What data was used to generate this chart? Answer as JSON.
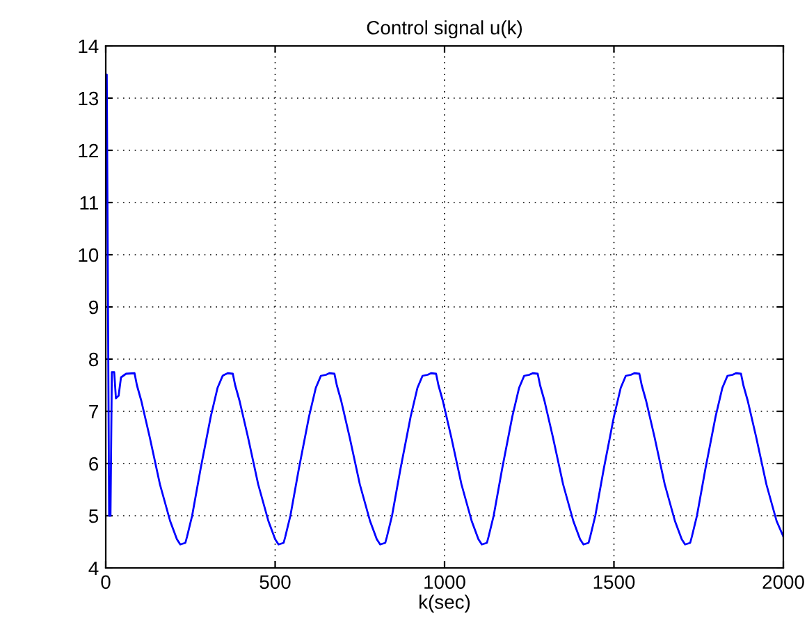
{
  "chart_data": {
    "type": "line",
    "title": "Control signal u(k)",
    "xlabel": "k(sec)",
    "xlim": [
      0,
      2000
    ],
    "ylim": [
      4,
      14
    ],
    "xticks": [
      0,
      500,
      1000,
      1500,
      2000
    ],
    "yticks": [
      4,
      5,
      6,
      7,
      8,
      9,
      10,
      11,
      12,
      13,
      14
    ],
    "grid": true,
    "line_style": "solid",
    "marker": "none",
    "series": [
      {
        "color": "#0000ff",
        "x": [
          0,
          3,
          10,
          14,
          18,
          25,
          30,
          38,
          45,
          60,
          85,
          92,
          105,
          130,
          160,
          190,
          210,
          220,
          235,
          240,
          255,
          280,
          310,
          330,
          345,
          350,
          360,
          375,
          382,
          395,
          420,
          450,
          480,
          500,
          510,
          525,
          530,
          545,
          570,
          600,
          620,
          635,
          650,
          660,
          675,
          682,
          695,
          720,
          750,
          780,
          800,
          810,
          825,
          830,
          845,
          870,
          900,
          920,
          935,
          950,
          960,
          975,
          982,
          995,
          1020,
          1050,
          1080,
          1100,
          1110,
          1125,
          1130,
          1145,
          1170,
          1200,
          1220,
          1235,
          1250,
          1260,
          1275,
          1282,
          1295,
          1320,
          1350,
          1380,
          1400,
          1410,
          1425,
          1430,
          1445,
          1470,
          1500,
          1520,
          1535,
          1550,
          1560,
          1575,
          1582,
          1595,
          1620,
          1650,
          1680,
          1700,
          1710,
          1725,
          1730,
          1745,
          1770,
          1800,
          1820,
          1835,
          1850,
          1860,
          1875,
          1882,
          1895,
          1920,
          1950,
          1980,
          2000
        ],
        "values": [
          13.45,
          13.45,
          5.0,
          5.0,
          7.75,
          7.75,
          7.25,
          7.3,
          7.65,
          7.72,
          7.73,
          7.5,
          7.2,
          6.5,
          5.6,
          4.9,
          4.55,
          4.45,
          4.48,
          4.6,
          5.0,
          5.9,
          6.9,
          7.45,
          7.68,
          7.7,
          7.73,
          7.72,
          7.5,
          7.2,
          6.5,
          5.6,
          4.9,
          4.55,
          4.45,
          4.48,
          4.6,
          5.0,
          5.9,
          6.9,
          7.45,
          7.68,
          7.7,
          7.73,
          7.72,
          7.5,
          7.2,
          6.5,
          5.6,
          4.9,
          4.55,
          4.45,
          4.48,
          4.6,
          5.0,
          5.9,
          6.9,
          7.45,
          7.68,
          7.7,
          7.73,
          7.72,
          7.5,
          7.2,
          6.5,
          5.6,
          4.9,
          4.55,
          4.45,
          4.48,
          4.6,
          5.0,
          5.9,
          6.9,
          7.45,
          7.68,
          7.7,
          7.73,
          7.72,
          7.5,
          7.2,
          6.5,
          5.6,
          4.9,
          4.55,
          4.45,
          4.48,
          4.6,
          5.0,
          5.9,
          6.9,
          7.45,
          7.68,
          7.7,
          7.73,
          7.72,
          7.5,
          7.2,
          6.5,
          5.6,
          4.9,
          4.55,
          4.45,
          4.48,
          4.6,
          5.0,
          5.9,
          6.9,
          7.45,
          7.68,
          7.7,
          7.73,
          7.72,
          7.5,
          7.2,
          6.5,
          5.6,
          4.9,
          4.6
        ]
      }
    ]
  }
}
